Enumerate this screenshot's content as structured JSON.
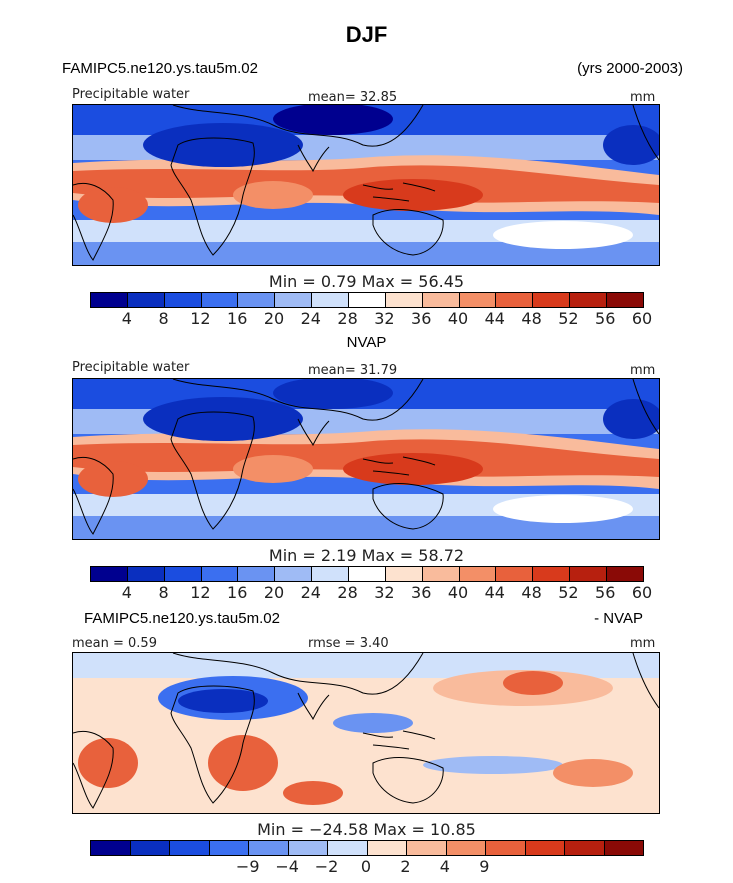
{
  "title": "DJF",
  "panels": [
    {
      "left_header": "FAMIPC5.ne120.ys.tau5m.02",
      "right_header": "(yrs 2000-2003)",
      "var_label": "Precipitable water",
      "stat_label": "mean=  32.85",
      "units": "mm",
      "minmax": "Min =    0.79  Max =   56.45",
      "colorbar_ticks": [
        "4",
        "8",
        "12",
        "16",
        "20",
        "24",
        "28",
        "32",
        "36",
        "40",
        "44",
        "48",
        "52",
        "56",
        "60"
      ],
      "colors": [
        "#00008f",
        "#0a2fbf",
        "#1b4de0",
        "#3b6ff0",
        "#6a93f2",
        "#9fbbf5",
        "#d0e1fb",
        "#ffffff",
        "#fde2cf",
        "#f9bb9c",
        "#f38f67",
        "#e8613c",
        "#d83a1c",
        "#b7200f",
        "#8a0a06"
      ]
    },
    {
      "left_header": "",
      "center_header": "NVAP",
      "var_label": "Precipitable water",
      "stat_label": "mean=  31.79",
      "units": "mm",
      "minmax": "Min =    2.19  Max =   58.72",
      "colorbar_ticks": [
        "4",
        "8",
        "12",
        "16",
        "20",
        "24",
        "28",
        "32",
        "36",
        "40",
        "44",
        "48",
        "52",
        "56",
        "60"
      ],
      "colors": [
        "#00008f",
        "#0a2fbf",
        "#1b4de0",
        "#3b6ff0",
        "#6a93f2",
        "#9fbbf5",
        "#d0e1fb",
        "#ffffff",
        "#fde2cf",
        "#f9bb9c",
        "#f38f67",
        "#e8613c",
        "#d83a1c",
        "#b7200f",
        "#8a0a06"
      ]
    },
    {
      "left_header": "FAMIPC5.ne120.ys.tau5m.02",
      "right_header": "- NVAP",
      "var_label": "mean =   0.59",
      "stat_label": "rmse =    3.40",
      "units": "mm",
      "minmax": "Min = −24.58  Max =  10.85",
      "colorbar_ticks": [
        "−9",
        "−4",
        "−2",
        "0",
        "2",
        "4",
        "9"
      ],
      "colors": [
        "#00008f",
        "#0a2fbf",
        "#1b4de0",
        "#3b6ff0",
        "#6a93f2",
        "#9fbbf5",
        "#d0e1fb",
        "#fde2cf",
        "#f9bb9c",
        "#f38f67",
        "#e8613c",
        "#d83a1c",
        "#b7200f",
        "#8a0a06"
      ]
    }
  ],
  "chart_data": [
    {
      "type": "heatmap",
      "title": "DJF",
      "subtitle": "FAMIPC5.ne120.ys.tau5m.02 (yrs 2000-2003)",
      "variable": "Precipitable water",
      "units": "mm",
      "mean": 32.85,
      "min": 0.79,
      "max": 56.45,
      "contour_levels": [
        4,
        8,
        12,
        16,
        20,
        24,
        28,
        32,
        36,
        40,
        44,
        48,
        52,
        56,
        60
      ]
    },
    {
      "type": "heatmap",
      "title": "NVAP",
      "variable": "Precipitable water",
      "units": "mm",
      "mean": 31.79,
      "min": 2.19,
      "max": 58.72,
      "contour_levels": [
        4,
        8,
        12,
        16,
        20,
        24,
        28,
        32,
        36,
        40,
        44,
        48,
        52,
        56,
        60
      ]
    },
    {
      "type": "heatmap",
      "title": "FAMIPC5.ne120.ys.tau5m.02 - NVAP",
      "units": "mm",
      "mean": 0.59,
      "rmse": 3.4,
      "min": -24.58,
      "max": 10.85,
      "contour_levels": [
        -9,
        -4,
        -2,
        0,
        2,
        4,
        9
      ]
    }
  ]
}
